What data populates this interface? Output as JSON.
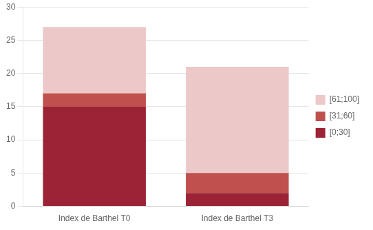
{
  "chart_data": {
    "type": "bar",
    "stacked": true,
    "categories": [
      "Index de Barthel T0",
      "Index de Barthel T3"
    ],
    "series": [
      {
        "name": "[0;30]",
        "color": "#9B2335",
        "values": [
          15,
          2
        ]
      },
      {
        "name": "[31;60]",
        "color": "#C0504D",
        "values": [
          2,
          3
        ]
      },
      {
        "name": "[61;100]",
        "color": "#ECC8C8",
        "values": [
          10,
          16
        ]
      }
    ],
    "ylim": [
      0,
      30
    ],
    "yticks": [
      0,
      5,
      10,
      15,
      20,
      25,
      30
    ],
    "grid": true,
    "legend": "right"
  }
}
